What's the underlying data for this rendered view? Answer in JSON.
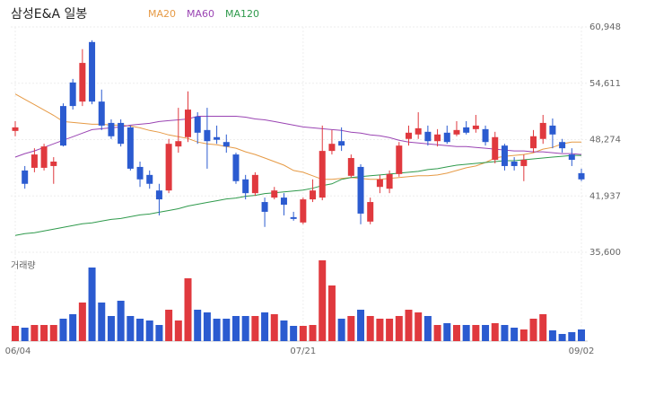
{
  "chart_data": {
    "type": "candlestick",
    "title": "삼성E&A 일봉",
    "volume_label": "거래량",
    "categories": [
      "06/04",
      null,
      null,
      null,
      null,
      null,
      null,
      null,
      null,
      null,
      null,
      null,
      null,
      null,
      null,
      null,
      null,
      null,
      null,
      null,
      null,
      null,
      null,
      null,
      null,
      null,
      null,
      null,
      null,
      null,
      "07/21",
      null,
      null,
      null,
      null,
      null,
      null,
      null,
      null,
      null,
      null,
      null,
      null,
      null,
      null,
      null,
      null,
      null,
      null,
      null,
      null,
      null,
      null,
      null,
      null,
      null,
      null,
      null,
      null,
      "09/02"
    ],
    "open": [
      49250,
      44800,
      45100,
      45100,
      45300,
      52050,
      54700,
      52550,
      59250,
      52550,
      50150,
      50150,
      49650,
      45200,
      44300,
      42550,
      42550,
      47500,
      48550,
      50850,
      49350,
      48550,
      48000,
      46600,
      43800,
      42250,
      41250,
      41750,
      41750,
      39550,
      38950,
      41550,
      41750,
      47000,
      48100,
      44200,
      45200,
      39050,
      42950,
      42750,
      44400,
      48350,
      48850,
      49150,
      48100,
      49050,
      48850,
      49650,
      49450,
      49450,
      46000,
      47600,
      45800,
      45300,
      47300,
      48350,
      49850,
      48000,
      46600,
      44500
    ],
    "high": [
      50350,
      45300,
      47300,
      47800,
      46300,
      52350,
      55100,
      58450,
      59450,
      53900,
      50550,
      50550,
      49850,
      45800,
      44800,
      43300,
      48350,
      51850,
      53700,
      51350,
      51850,
      49850,
      48850,
      46800,
      44300,
      44600,
      41750,
      42950,
      42250,
      40150,
      41750,
      43800,
      49850,
      49350,
      49650,
      46600,
      45500,
      41750,
      44300,
      44800,
      48000,
      49850,
      51350,
      49850,
      49450,
      49850,
      50350,
      50350,
      51050,
      49850,
      49150,
      47800,
      46300,
      46600,
      49350,
      51050,
      50650,
      48350,
      47300,
      45000
    ],
    "low": [
      48650,
      42750,
      44600,
      44800,
      43300,
      47500,
      51650,
      52050,
      52250,
      49350,
      48350,
      47500,
      44800,
      42950,
      42750,
      39750,
      42250,
      46800,
      48000,
      47800,
      45000,
      47800,
      46800,
      43300,
      41550,
      41950,
      38450,
      41550,
      39750,
      39150,
      38750,
      41250,
      41450,
      46600,
      47000,
      44000,
      38750,
      38750,
      42250,
      42250,
      44100,
      47600,
      48350,
      47600,
      47500,
      47800,
      48650,
      48850,
      49050,
      47600,
      45600,
      44800,
      44800,
      43600,
      46800,
      47800,
      47300,
      46800,
      45300,
      43600
    ],
    "close": [
      49650,
      43300,
      46600,
      47500,
      45800,
      47600,
      52050,
      56900,
      52550,
      49850,
      48650,
      47800,
      45000,
      43800,
      43300,
      41550,
      47800,
      48100,
      51650,
      49050,
      48100,
      48250,
      47500,
      43600,
      42250,
      44300,
      40150,
      42550,
      40950,
      39350,
      41550,
      42550,
      47000,
      47800,
      47600,
      46200,
      39950,
      41250,
      43800,
      44400,
      47600,
      49050,
      49550,
      48100,
      48850,
      48000,
      49350,
      49050,
      49850,
      48000,
      48550,
      45300,
      45300,
      46000,
      48650,
      50150,
      48850,
      47300,
      46000,
      43800
    ],
    "volume": [
      17,
      15,
      18,
      18,
      18,
      25,
      30,
      43,
      82,
      43,
      28,
      45,
      28,
      25,
      23,
      18,
      35,
      23,
      70,
      35,
      32,
      25,
      25,
      28,
      28,
      28,
      32,
      30,
      23,
      17,
      17,
      18,
      90,
      62,
      25,
      28,
      35,
      28,
      25,
      25,
      28,
      35,
      32,
      28,
      18,
      20,
      18,
      18,
      18,
      18,
      20,
      18,
      15,
      13,
      25,
      30,
      12,
      8,
      10,
      13
    ],
    "up_color": "#e0393e",
    "down_color": "#2b5bd0",
    "series": [
      {
        "name": "MA20",
        "color": "#e69a45",
        "values": [
          53400,
          52800,
          52200,
          51600,
          51000,
          50300,
          50200,
          50100,
          50000,
          50000,
          49900,
          49900,
          49800,
          49600,
          49300,
          49100,
          48800,
          48600,
          48400,
          48000,
          47800,
          47700,
          47500,
          47300,
          46900,
          46600,
          46200,
          45800,
          45400,
          44800,
          44600,
          44200,
          43800,
          43800,
          43900,
          44000,
          43900,
          43800,
          43800,
          43900,
          44000,
          44100,
          44200,
          44200,
          44300,
          44500,
          44800,
          45100,
          45300,
          45700,
          46200,
          46400,
          46500,
          46600,
          46800,
          47200,
          47400,
          47800,
          48000,
          48000
        ]
      },
      {
        "name": "MA60",
        "color": "#9a44b3",
        "values": [
          46300,
          46700,
          47000,
          47400,
          47800,
          48200,
          48600,
          49000,
          49400,
          49500,
          49600,
          49700,
          49900,
          50000,
          50100,
          50300,
          50400,
          50500,
          50600,
          50900,
          50900,
          50900,
          50900,
          50900,
          50800,
          50600,
          50500,
          50300,
          50100,
          49900,
          49700,
          49600,
          49500,
          49400,
          49300,
          49100,
          49000,
          48800,
          48700,
          48500,
          48200,
          48000,
          47900,
          47800,
          47700,
          47600,
          47500,
          47500,
          47400,
          47300,
          47200,
          47100,
          47000,
          47000,
          46900,
          46900,
          46800,
          46700,
          46700,
          46600
        ]
      },
      {
        "name": "MA120",
        "color": "#2f9a4c",
        "values": [
          37500,
          37700,
          37800,
          38000,
          38200,
          38400,
          38600,
          38800,
          38900,
          39100,
          39300,
          39400,
          39600,
          39800,
          39900,
          40100,
          40300,
          40500,
          40800,
          41000,
          41200,
          41400,
          41600,
          41700,
          41900,
          42000,
          42200,
          42300,
          42400,
          42500,
          42600,
          42800,
          43100,
          43300,
          43800,
          44000,
          44100,
          44200,
          44300,
          44400,
          44500,
          44600,
          44700,
          44900,
          45000,
          45200,
          45400,
          45500,
          45600,
          45700,
          45800,
          45900,
          45900,
          46000,
          46100,
          46200,
          46300,
          46400,
          46500,
          46500
        ]
      }
    ],
    "ylim": [
      35600,
      60948
    ],
    "yticks": [
      {
        "value": 35600,
        "label": "35,600"
      },
      {
        "value": 41937,
        "label": "41,937"
      },
      {
        "value": 48274,
        "label": "48,274"
      },
      {
        "value": 54611,
        "label": "54,611"
      },
      {
        "value": 60948,
        "label": "60,948"
      }
    ],
    "grid": true
  }
}
